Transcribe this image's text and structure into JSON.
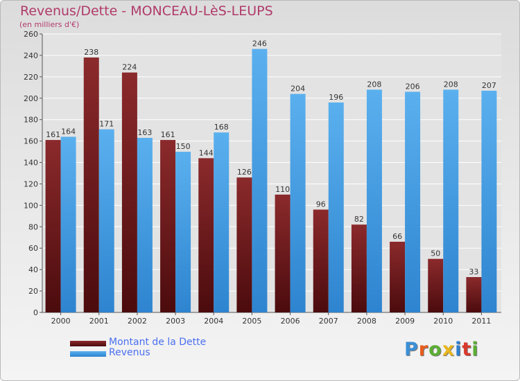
{
  "title": "Revenus/Dette - MONCEAU-LèS-LEUPS",
  "subtitle": "(en milliers d'€)",
  "logo": {
    "text": "Proxiti",
    "colors": [
      "#3b8fd6",
      "#e85c1e",
      "#5cae34",
      "#e8b61e",
      "#2f7fd0",
      "#d9382b",
      "#5cae34"
    ]
  },
  "colors": {
    "dette_top": "#8b2a2c",
    "dette_bottom": "#4b0b0d",
    "revenus_top": "#5ab0ee",
    "revenus_bottom": "#2e84cf",
    "text": "#333333",
    "grid": "#ffffff"
  },
  "chart_data": {
    "type": "bar",
    "title": "Revenus/Dette - MONCEAU-LèS-LEUPS",
    "ylabel": "(en milliers d'€)",
    "xlabel": "",
    "categories": [
      "2000",
      "2001",
      "2002",
      "2003",
      "2004",
      "2005",
      "2006",
      "2007",
      "2008",
      "2009",
      "2010",
      "2011"
    ],
    "series": [
      {
        "name": "Montant de la Dette",
        "values": [
          161,
          238,
          224,
          161,
          144,
          126,
          110,
          96,
          82,
          66,
          50,
          33
        ]
      },
      {
        "name": "Revenus",
        "values": [
          164,
          171,
          163,
          150,
          168,
          246,
          204,
          196,
          208,
          206,
          208,
          207
        ]
      }
    ],
    "ylim": [
      0,
      260
    ],
    "yticks": [
      0,
      20,
      40,
      60,
      80,
      100,
      120,
      140,
      160,
      180,
      200,
      220,
      240,
      260
    ],
    "grid": true,
    "legend": "bottom-left"
  }
}
